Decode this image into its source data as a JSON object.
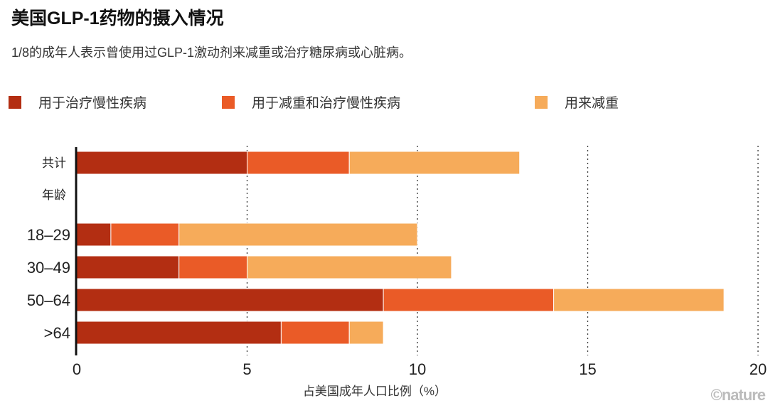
{
  "title": "美国GLP-1药物的摄入情况",
  "subtitle": "1/8的成年人表示曾使用过GLP-1激动剂来减重或治疗糖尿病或心脏病。",
  "credit": "©nature",
  "chart_data": {
    "type": "bar",
    "orientation": "horizontal",
    "stacked": true,
    "categories": [
      "共计",
      "年龄",
      "18–29",
      "30–49",
      "50–64",
      ">64"
    ],
    "series": [
      {
        "name": "用于治疗慢性疾病",
        "color": "#b32e12",
        "values": [
          5,
          null,
          1,
          3,
          9,
          6
        ]
      },
      {
        "name": "用于减重和治疗慢性疾病",
        "color": "#ea5b27",
        "values": [
          3,
          null,
          2,
          2,
          5,
          2
        ]
      },
      {
        "name": "用来减重",
        "color": "#f6ab5a",
        "values": [
          5,
          null,
          7,
          6,
          5,
          1
        ]
      }
    ],
    "xlabel": "占美国成年人口比例（%）",
    "xlim": [
      0,
      20
    ],
    "xticks": [
      "0",
      "5",
      "10",
      "15",
      "20"
    ],
    "grid": "vertical dotted",
    "legend_placement": "top"
  }
}
